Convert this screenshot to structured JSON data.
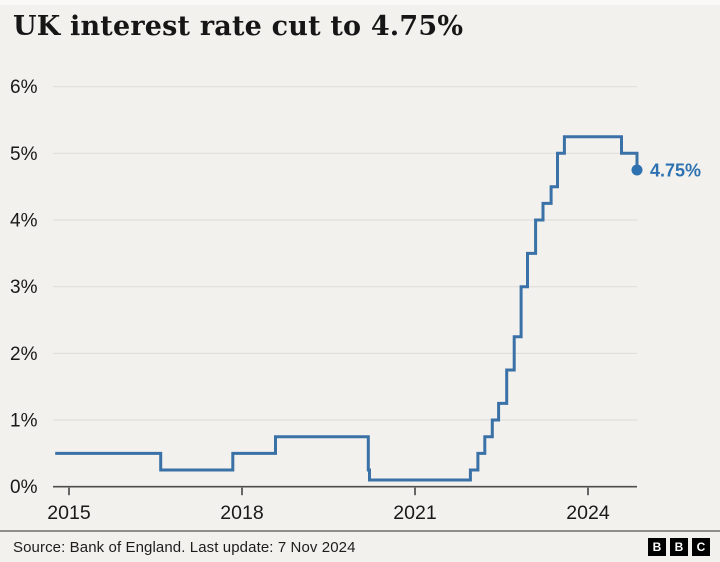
{
  "header": {
    "title": "UK interest rate cut to 4.75%"
  },
  "footer": {
    "source_text": "Source: Bank of England. Last update: 7 Nov 2024",
    "logo": [
      "B",
      "B",
      "C"
    ]
  },
  "colors": {
    "background": "#f2f1ee",
    "line": "#3a71a6",
    "accent": "#2d71b0",
    "grid": "#dddcd8",
    "axis": "#4d4d4c",
    "text": "#191919"
  },
  "chart_data": {
    "type": "line",
    "line_style": "step-after",
    "title": "UK interest rate cut to 4.75%",
    "unit": "%",
    "ylim": [
      0,
      6
    ],
    "grid": "horizontal-only",
    "legend": "none",
    "x_ticks": [
      "2015",
      "2018",
      "2021",
      "2024"
    ],
    "y_ticks": [
      {
        "value": 6,
        "label": "6%"
      },
      {
        "value": 5,
        "label": "5%"
      },
      {
        "value": 4,
        "label": "4%"
      },
      {
        "value": 3,
        "label": "3%"
      },
      {
        "value": 2,
        "label": "2%"
      },
      {
        "value": 1,
        "label": "1%"
      },
      {
        "value": 0,
        "label": "0%"
      }
    ],
    "end_label": "4.75%",
    "points": [
      {
        "year": 2014.76,
        "rate": 0.5
      },
      {
        "year": 2016.59,
        "rate": 0.25
      },
      {
        "year": 2017.84,
        "rate": 0.5
      },
      {
        "year": 2018.58,
        "rate": 0.75
      },
      {
        "year": 2020.19,
        "rate": 0.25
      },
      {
        "year": 2020.21,
        "rate": 0.1
      },
      {
        "year": 2021.96,
        "rate": 0.25
      },
      {
        "year": 2022.09,
        "rate": 0.5
      },
      {
        "year": 2022.21,
        "rate": 0.75
      },
      {
        "year": 2022.34,
        "rate": 1.0
      },
      {
        "year": 2022.45,
        "rate": 1.25
      },
      {
        "year": 2022.59,
        "rate": 1.75
      },
      {
        "year": 2022.72,
        "rate": 2.25
      },
      {
        "year": 2022.84,
        "rate": 3.0
      },
      {
        "year": 2022.95,
        "rate": 3.5
      },
      {
        "year": 2023.09,
        "rate": 4.0
      },
      {
        "year": 2023.22,
        "rate": 4.25
      },
      {
        "year": 2023.36,
        "rate": 4.5
      },
      {
        "year": 2023.47,
        "rate": 5.0
      },
      {
        "year": 2023.59,
        "rate": 5.25
      },
      {
        "year": 2024.58,
        "rate": 5.0
      },
      {
        "year": 2024.85,
        "rate": 4.75
      }
    ]
  }
}
